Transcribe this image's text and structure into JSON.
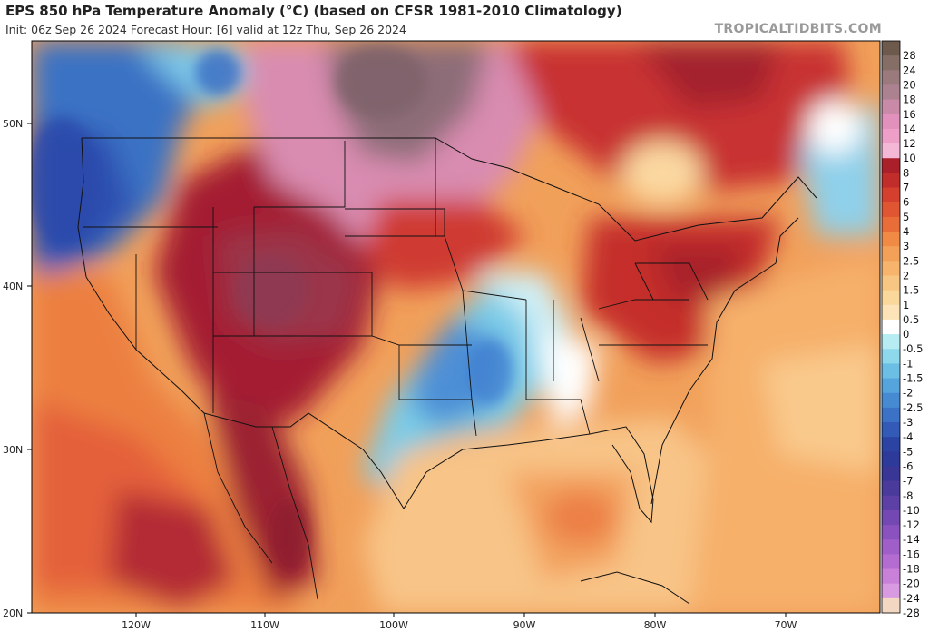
{
  "header": {
    "title": "EPS 850 hPa Temperature Anomaly (°C) (based on CFSR 1981-2010 Climatology)",
    "subtitle": "Init: 06z Sep 26 2024   Forecast Hour: [6]   valid at 12z Thu, Sep 26 2024",
    "brand": "TROPICALTIDBITS.COM"
  },
  "map": {
    "lat_labels": [
      "50N",
      "40N",
      "30N",
      "20N"
    ],
    "lon_labels": [
      "120W",
      "110W",
      "100W",
      "90W",
      "80W",
      "70W"
    ],
    "extent": {
      "lon_min": -128,
      "lon_max": -63.5,
      "lat_min": 20,
      "lat_max": 55
    }
  },
  "colorbar": {
    "labels": [
      "28",
      "24",
      "20",
      "18",
      "16",
      "14",
      "12",
      "10",
      "8",
      "7",
      "6",
      "5",
      "4",
      "3",
      "2.5",
      "2",
      "1.5",
      "1",
      "0.5",
      "0",
      "-0.5",
      "-1",
      "-1.5",
      "-2",
      "-2.5",
      "-3",
      "-4",
      "-5",
      "-6",
      "-7",
      "-8",
      "-10",
      "-12",
      "-14",
      "-16",
      "-18",
      "-20",
      "-24",
      "-28"
    ],
    "colors": [
      "#6e5a4c",
      "#856e66",
      "#9b7a7e",
      "#ad8290",
      "#c98aa8",
      "#e291bd",
      "#ee9fc8",
      "#f4b8d6",
      "#a9202a",
      "#c12d2a",
      "#d53f2e",
      "#e05532",
      "#e96d39",
      "#f08a45",
      "#f3a058",
      "#f6b46c",
      "#f8c683",
      "#fad79b",
      "#fce4b8",
      "#ffffff",
      "#b7ecf3",
      "#8ed8ec",
      "#6cbfe4",
      "#55a5dc",
      "#468bd2",
      "#3c72c6",
      "#335ab7",
      "#2b44a4",
      "#2e3a9a",
      "#3a3696",
      "#4a3a9c",
      "#5c40a6",
      "#7448b2",
      "#8a52be",
      "#a05ec8",
      "#b56cd0",
      "#c880d8",
      "#d89ae0",
      "#f2d8c2"
    ]
  }
}
